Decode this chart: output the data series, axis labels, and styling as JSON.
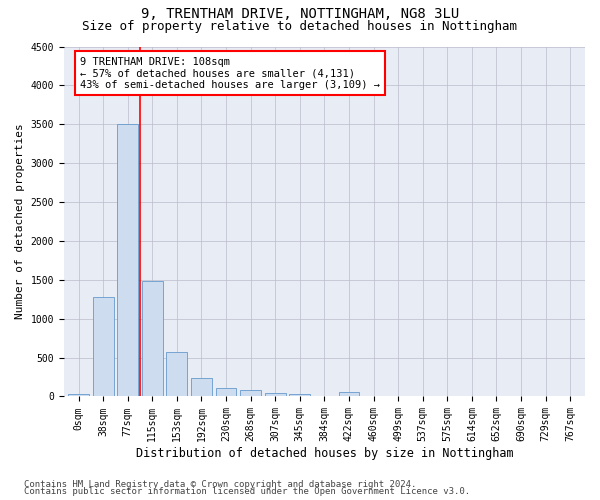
{
  "title1": "9, TRENTHAM DRIVE, NOTTINGHAM, NG8 3LU",
  "title2": "Size of property relative to detached houses in Nottingham",
  "xlabel": "Distribution of detached houses by size in Nottingham",
  "ylabel": "Number of detached properties",
  "categories": [
    "0sqm",
    "38sqm",
    "77sqm",
    "115sqm",
    "153sqm",
    "192sqm",
    "230sqm",
    "268sqm",
    "307sqm",
    "345sqm",
    "384sqm",
    "422sqm",
    "460sqm",
    "499sqm",
    "537sqm",
    "575sqm",
    "614sqm",
    "652sqm",
    "690sqm",
    "729sqm",
    "767sqm"
  ],
  "values": [
    30,
    1280,
    3500,
    1480,
    575,
    240,
    115,
    80,
    50,
    30,
    0,
    55,
    0,
    0,
    0,
    0,
    0,
    0,
    0,
    0,
    0
  ],
  "bar_color": "#cddcee",
  "bar_edge_color": "#6699cc",
  "vline_x": 2.5,
  "vline_color": "red",
  "annotation_text": "9 TRENTHAM DRIVE: 108sqm\n← 57% of detached houses are smaller (4,131)\n43% of semi-detached houses are larger (3,109) →",
  "annotation_box_color": "white",
  "annotation_box_edge": "red",
  "ylim": [
    0,
    4500
  ],
  "yticks": [
    0,
    500,
    1000,
    1500,
    2000,
    2500,
    3000,
    3500,
    4000,
    4500
  ],
  "grid_color": "#bbbbcc",
  "bg_color": "#e8edf5",
  "footer1": "Contains HM Land Registry data © Crown copyright and database right 2024.",
  "footer2": "Contains public sector information licensed under the Open Government Licence v3.0.",
  "title1_fontsize": 10,
  "title2_fontsize": 9,
  "xlabel_fontsize": 8.5,
  "ylabel_fontsize": 8,
  "tick_fontsize": 7,
  "footer_fontsize": 6.5,
  "ann_fontsize": 7.5
}
